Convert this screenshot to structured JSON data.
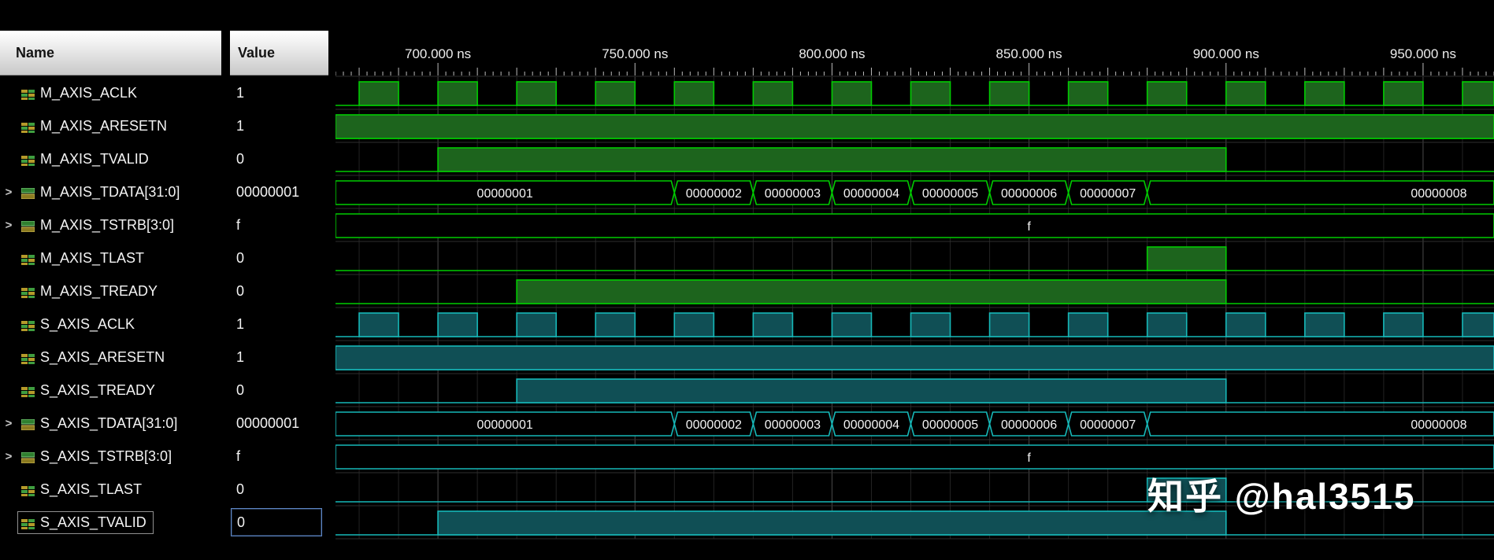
{
  "header": {
    "name_label": "Name",
    "value_label": "Value"
  },
  "watermark": "知乎 @hal3515",
  "colors": {
    "green_line": "#00cc00",
    "green_fill": "#1d641d",
    "teal_line": "#16b8b8",
    "teal_fill": "#104f55",
    "grid_major": "#4a4a4a",
    "grid_minor": "#232323",
    "row_divider": "#2e2e2e",
    "ruler_tick": "#bbbbbb",
    "ruler_text": "#ededed",
    "bus_text": "#f4f4f4",
    "selected_value_border": "#5d86c5"
  },
  "timeline": {
    "unit": "ns",
    "view_start_ns": 674,
    "view_end_ns": 968,
    "major_tick_interval_ns": 50,
    "minor_tick_interval_ns": 10,
    "labels": [
      {
        "t": 700,
        "text": "700.000 ns"
      },
      {
        "t": 750,
        "text": "750.000 ns"
      },
      {
        "t": 800,
        "text": "800.000 ns"
      },
      {
        "t": 850,
        "text": "850.000 ns"
      },
      {
        "t": 900,
        "text": "900.000 ns"
      },
      {
        "t": 950,
        "text": "950.000 ns"
      }
    ]
  },
  "signals": [
    {
      "name": "M_AXIS_ACLK",
      "value": "1",
      "color": "green",
      "kind": "clock",
      "icon": "scalar",
      "expandable": false,
      "selected": false,
      "clock": {
        "first_rise_ns": 680,
        "period_ns": 20,
        "high_ns": 10
      }
    },
    {
      "name": "M_AXIS_ARESETN",
      "value": "1",
      "color": "green",
      "kind": "bit",
      "icon": "scalar",
      "expandable": false,
      "selected": false,
      "high_intervals": [
        [
          674,
          968
        ]
      ]
    },
    {
      "name": "M_AXIS_TVALID",
      "value": "0",
      "color": "green",
      "kind": "bit",
      "icon": "scalar",
      "expandable": false,
      "selected": false,
      "high_intervals": [
        [
          700,
          900
        ]
      ]
    },
    {
      "name": "M_AXIS_TDATA[31:0]",
      "value": "00000001",
      "color": "green",
      "kind": "bus",
      "icon": "bus",
      "expandable": true,
      "selected": false,
      "segments": [
        {
          "from": 674,
          "to": 760,
          "label": "00000001"
        },
        {
          "from": 760,
          "to": 780,
          "label": "00000002"
        },
        {
          "from": 780,
          "to": 800,
          "label": "00000003"
        },
        {
          "from": 800,
          "to": 820,
          "label": "00000004"
        },
        {
          "from": 820,
          "to": 840,
          "label": "00000005"
        },
        {
          "from": 840,
          "to": 860,
          "label": "00000006"
        },
        {
          "from": 860,
          "to": 880,
          "label": "00000007"
        },
        {
          "from": 880,
          "to": 968,
          "label": "00000008",
          "label_t": 954
        }
      ]
    },
    {
      "name": "M_AXIS_TSTRB[3:0]",
      "value": "f",
      "color": "green",
      "kind": "bus",
      "icon": "bus",
      "expandable": true,
      "selected": false,
      "segments": [
        {
          "from": 674,
          "to": 968,
          "label": "f",
          "label_t": 850
        }
      ]
    },
    {
      "name": "M_AXIS_TLAST",
      "value": "0",
      "color": "green",
      "kind": "bit",
      "icon": "scalar",
      "expandable": false,
      "selected": false,
      "high_intervals": [
        [
          880,
          900
        ]
      ]
    },
    {
      "name": "M_AXIS_TREADY",
      "value": "0",
      "color": "green",
      "kind": "bit",
      "icon": "scalar",
      "expandable": false,
      "selected": false,
      "high_intervals": [
        [
          720,
          900
        ]
      ]
    },
    {
      "name": "S_AXIS_ACLK",
      "value": "1",
      "color": "teal",
      "kind": "clock",
      "icon": "scalar",
      "expandable": false,
      "selected": false,
      "clock": {
        "first_rise_ns": 680,
        "period_ns": 20,
        "high_ns": 10
      }
    },
    {
      "name": "S_AXIS_ARESETN",
      "value": "1",
      "color": "teal",
      "kind": "bit",
      "icon": "scalar",
      "expandable": false,
      "selected": false,
      "high_intervals": [
        [
          674,
          968
        ]
      ]
    },
    {
      "name": "S_AXIS_TREADY",
      "value": "0",
      "color": "teal",
      "kind": "bit",
      "icon": "scalar",
      "expandable": false,
      "selected": false,
      "high_intervals": [
        [
          720,
          900
        ]
      ]
    },
    {
      "name": "S_AXIS_TDATA[31:0]",
      "value": "00000001",
      "color": "teal",
      "kind": "bus",
      "icon": "bus",
      "expandable": true,
      "selected": false,
      "segments": [
        {
          "from": 674,
          "to": 760,
          "label": "00000001"
        },
        {
          "from": 760,
          "to": 780,
          "label": "00000002"
        },
        {
          "from": 780,
          "to": 800,
          "label": "00000003"
        },
        {
          "from": 800,
          "to": 820,
          "label": "00000004"
        },
        {
          "from": 820,
          "to": 840,
          "label": "00000005"
        },
        {
          "from": 840,
          "to": 860,
          "label": "00000006"
        },
        {
          "from": 860,
          "to": 880,
          "label": "00000007"
        },
        {
          "from": 880,
          "to": 968,
          "label": "00000008",
          "label_t": 954
        }
      ]
    },
    {
      "name": "S_AXIS_TSTRB[3:0]",
      "value": "f",
      "color": "teal",
      "kind": "bus",
      "icon": "bus",
      "expandable": true,
      "selected": false,
      "segments": [
        {
          "from": 674,
          "to": 968,
          "label": "f",
          "label_t": 850
        }
      ]
    },
    {
      "name": "S_AXIS_TLAST",
      "value": "0",
      "color": "teal",
      "kind": "bit",
      "icon": "scalar",
      "expandable": false,
      "selected": false,
      "high_intervals": [
        [
          880,
          900
        ]
      ]
    },
    {
      "name": "S_AXIS_TVALID",
      "value": "0",
      "color": "teal",
      "kind": "bit",
      "icon": "scalar",
      "expandable": false,
      "selected": true,
      "high_intervals": [
        [
          700,
          900
        ]
      ]
    }
  ]
}
